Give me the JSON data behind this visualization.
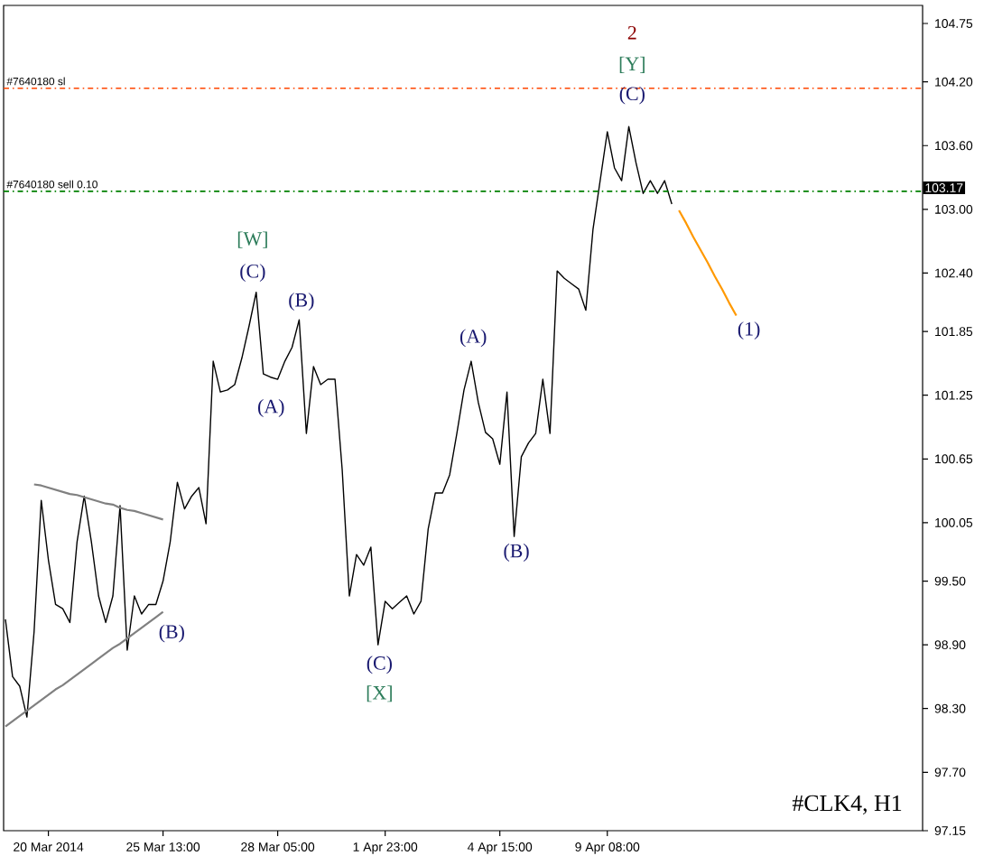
{
  "chart_data": {
    "type": "line",
    "title": "#CLK4, H1",
    "categories": [
      null,
      null,
      null,
      null,
      null,
      null,
      "20 Mar 2014",
      null,
      null,
      null,
      null,
      null,
      null,
      null,
      null,
      null,
      null,
      null,
      null,
      null,
      null,
      null,
      "25 Mar 13:00",
      null,
      null,
      null,
      null,
      null,
      null,
      null,
      null,
      null,
      null,
      null,
      null,
      null,
      null,
      null,
      "28 Mar 05:00",
      null,
      null,
      null,
      null,
      null,
      null,
      null,
      null,
      null,
      null,
      null,
      null,
      null,
      null,
      "1 Apr 23:00",
      null,
      null,
      null,
      null,
      null,
      null,
      null,
      null,
      null,
      null,
      null,
      null,
      null,
      null,
      null,
      "4 Apr 15:00",
      null,
      null,
      null,
      null,
      null,
      null,
      null,
      null,
      null,
      null,
      null,
      null,
      null,
      null,
      "9 Apr 08:00",
      null,
      null,
      null,
      null,
      null,
      null,
      null,
      null,
      null,
      null,
      null,
      null,
      null,
      null,
      null,
      null,
      null,
      null,
      null,
      null,
      null,
      null,
      null,
      null,
      null,
      null,
      null,
      null,
      null,
      null,
      null,
      null,
      null,
      null,
      null,
      null,
      null,
      null,
      null,
      null,
      null,
      null,
      null,
      null
    ],
    "ylim": [
      97.15,
      104.92
    ],
    "yticks": [
      {
        "value": 97.15,
        "label": "97.15"
      },
      {
        "value": 97.7,
        "label": "97.70"
      },
      {
        "value": 98.3,
        "label": "98.30"
      },
      {
        "value": 98.9,
        "label": "98.90"
      },
      {
        "value": 99.5,
        "label": "99.50"
      },
      {
        "value": 100.05,
        "label": "100.05"
      },
      {
        "value": 100.65,
        "label": "100.65"
      },
      {
        "value": 101.25,
        "label": "101.25"
      },
      {
        "value": 101.85,
        "label": "101.85"
      },
      {
        "value": 102.4,
        "label": "102.40"
      },
      {
        "value": 103.0,
        "label": "103.00"
      },
      {
        "value": 103.6,
        "label": "103.60"
      },
      {
        "value": 104.2,
        "label": "104.20"
      },
      {
        "value": 104.75,
        "label": "104.75"
      }
    ],
    "series": [
      {
        "color": "#000000",
        "values": [
          99.14,
          98.6,
          98.51,
          98.22,
          99.02,
          100.26,
          99.7,
          99.28,
          99.24,
          99.11,
          99.87,
          100.3,
          99.87,
          99.36,
          99.11,
          99.36,
          100.21,
          98.85,
          99.36,
          99.19,
          99.28,
          99.28,
          99.5,
          99.87,
          100.43,
          100.18,
          100.3,
          100.38,
          100.04,
          101.57,
          101.28,
          101.3,
          101.35,
          101.6,
          101.9,
          102.22,
          101.45,
          101.42,
          101.4,
          101.57,
          101.7,
          101.96,
          100.89,
          101.52,
          101.35,
          101.4,
          101.4,
          100.55,
          99.36,
          99.75,
          99.65,
          99.82,
          98.9,
          99.31,
          99.24,
          99.3,
          99.36,
          99.19,
          99.31,
          99.99,
          100.33,
          100.33,
          100.5,
          100.89,
          101.3,
          101.57,
          101.18,
          100.9,
          100.84,
          100.6,
          101.28,
          99.92,
          100.67,
          100.8,
          100.89,
          101.4,
          100.89,
          102.42,
          102.35,
          102.3,
          102.25,
          102.05,
          102.81,
          103.27,
          103.73,
          103.39,
          103.27,
          103.78,
          103.44,
          103.15,
          103.27,
          103.15,
          103.27,
          103.05,
          null,
          null,
          null,
          null,
          null,
          null,
          null,
          null,
          null,
          null,
          null,
          null,
          null,
          null,
          null,
          null,
          null,
          null,
          null,
          null,
          null,
          null,
          null,
          null,
          null,
          null,
          null,
          null,
          null,
          null,
          null,
          null,
          null,
          null,
          null
        ]
      },
      {
        "color": "#808080",
        "values": [
          null,
          null,
          null,
          null,
          100.41,
          100.4,
          100.38,
          100.36,
          100.34,
          100.32,
          100.31,
          100.29,
          100.27,
          100.25,
          100.23,
          100.22,
          100.19,
          100.17,
          100.16,
          100.14,
          100.12,
          100.1,
          100.08,
          null,
          null,
          null,
          null,
          null,
          null,
          null,
          null,
          null,
          null,
          null,
          null,
          null,
          null,
          null,
          null,
          null,
          null,
          null,
          null,
          null,
          null,
          null,
          null,
          null,
          null,
          null,
          null,
          null,
          null,
          null,
          null,
          null,
          null,
          null,
          null,
          null,
          null,
          null,
          null,
          null,
          null,
          null,
          null,
          null,
          null,
          null,
          null,
          null,
          null,
          null,
          null,
          null,
          null,
          null,
          null,
          null,
          null,
          null,
          null,
          null,
          null,
          null,
          null,
          null,
          null,
          null,
          null,
          null,
          null,
          null,
          null,
          null,
          null,
          null,
          null,
          null,
          null,
          null,
          null,
          null,
          null,
          null,
          null,
          null,
          null,
          null,
          null,
          null,
          null,
          null,
          null,
          null,
          null,
          null,
          null,
          null,
          null,
          null,
          null,
          null,
          null,
          null,
          null,
          null,
          null
        ]
      },
      {
        "color": "#808080",
        "values": [
          98.13,
          98.18,
          98.23,
          98.28,
          98.33,
          98.38,
          98.43,
          98.48,
          98.52,
          98.57,
          98.62,
          98.67,
          98.72,
          98.77,
          98.82,
          98.87,
          98.91,
          98.96,
          99.01,
          99.06,
          99.11,
          99.16,
          99.21,
          null,
          null,
          null,
          null,
          null,
          null,
          null,
          null,
          null,
          null,
          null,
          null,
          null,
          null,
          null,
          null,
          null,
          null,
          null,
          null,
          null,
          null,
          null,
          null,
          null,
          null,
          null,
          null,
          null,
          null,
          null,
          null,
          null,
          null,
          null,
          null,
          null,
          null,
          null,
          null,
          null,
          null,
          null,
          null,
          null,
          null,
          null,
          null,
          null,
          null,
          null,
          null,
          null,
          null,
          null,
          null,
          null,
          null,
          null,
          null,
          null,
          null,
          null,
          null,
          null,
          null,
          null,
          null,
          null,
          null,
          null,
          null,
          null,
          null,
          null,
          null,
          null,
          null,
          null,
          null,
          null,
          null,
          null,
          null,
          null,
          null,
          null,
          null,
          null,
          null,
          null,
          null,
          null,
          null,
          null,
          null,
          null,
          null,
          null,
          null,
          null,
          null,
          null,
          null,
          null,
          null
        ]
      },
      {
        "color": "#ff9900",
        "values": [
          null,
          null,
          null,
          null,
          null,
          null,
          null,
          null,
          null,
          null,
          null,
          null,
          null,
          null,
          null,
          null,
          null,
          null,
          null,
          null,
          null,
          null,
          null,
          null,
          null,
          null,
          null,
          null,
          null,
          null,
          null,
          null,
          null,
          null,
          null,
          null,
          null,
          null,
          null,
          null,
          null,
          null,
          null,
          null,
          null,
          null,
          null,
          null,
          null,
          null,
          null,
          null,
          null,
          null,
          null,
          null,
          null,
          null,
          null,
          null,
          null,
          null,
          null,
          null,
          null,
          null,
          null,
          null,
          null,
          null,
          null,
          null,
          null,
          null,
          null,
          null,
          null,
          null,
          null,
          null,
          null,
          null,
          null,
          null,
          null,
          null,
          null,
          null,
          null,
          null,
          null,
          null,
          null,
          null,
          102.99,
          102.87,
          102.74,
          102.62,
          102.5,
          102.37,
          102.25,
          102.12,
          102.0,
          null,
          null,
          null,
          null,
          null,
          null,
          null,
          null,
          null,
          null,
          null,
          null,
          null,
          null,
          null,
          null,
          null,
          null,
          null,
          null,
          null,
          null,
          null,
          null,
          null,
          null
        ]
      }
    ],
    "ref_lines": [
      {
        "axis": "y",
        "value": 104.14,
        "label": "#7640180 sl",
        "color": "#ff4500",
        "line_style": "dashed"
      },
      {
        "axis": "y",
        "value": 103.17,
        "label": "#7640180 sell 0.10",
        "color": "#008000",
        "line_style": "dashed"
      }
    ],
    "annotations": [
      "2",
      "[Y]",
      "(C)",
      "[W]",
      "(C)",
      "(B)",
      "(A)",
      "(A)",
      "(B)",
      "(C)",
      "[X]",
      "(B)",
      "(1)",
      "103.17"
    ]
  }
}
